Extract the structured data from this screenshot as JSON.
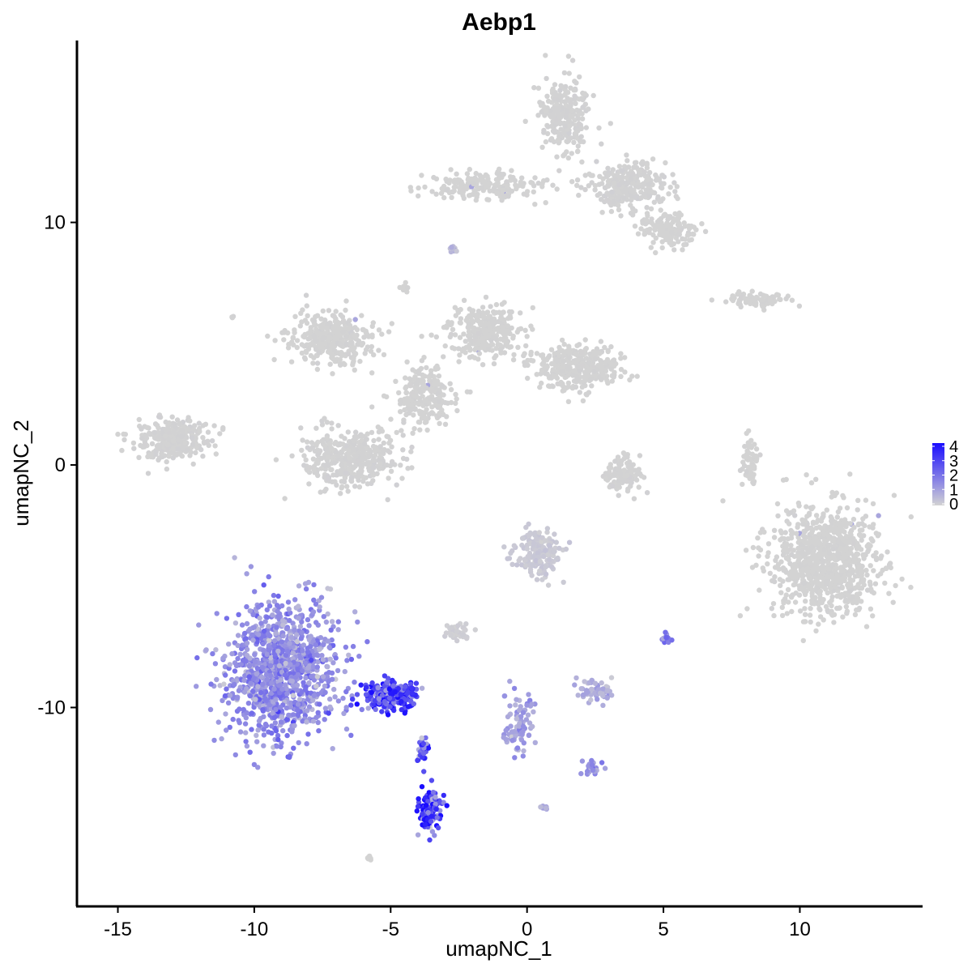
{
  "chart_data": {
    "type": "scatter",
    "title": "Aebp1",
    "xlabel": "umapNC_1",
    "ylabel": "umapNC_2",
    "xlim": [
      -16.5,
      14.5
    ],
    "ylim": [
      -18.2,
      17.5
    ],
    "x_ticks": [
      -15,
      -10,
      -5,
      0,
      5,
      10
    ],
    "x_tick_labels": [
      "-15",
      "-10",
      "-5",
      "0",
      "5",
      "10"
    ],
    "y_ticks": [
      -10,
      0,
      10
    ],
    "y_tick_labels": [
      "-10",
      "0",
      "10"
    ],
    "grid": false,
    "colorbar": {
      "min": 0,
      "max": 4,
      "ticks": [
        0,
        1,
        2,
        3,
        4
      ],
      "tick_labels": [
        "0",
        "1",
        "2",
        "3",
        "4"
      ],
      "low_color": "#D3D3D3",
      "high_color": "#1A0DFF",
      "placement": "right"
    },
    "clusters": [
      {
        "center": [
          -9.0,
          -8.5
        ],
        "spread": [
          1.9,
          2.6
        ],
        "n": 1100,
        "expression": 1.4
      },
      {
        "center": [
          -5.0,
          -9.5
        ],
        "spread": [
          0.9,
          0.5
        ],
        "n": 260,
        "expression": 2.8
      },
      {
        "center": [
          -3.6,
          -14.3
        ],
        "spread": [
          0.35,
          0.75
        ],
        "n": 140,
        "expression": 3.0
      },
      {
        "center": [
          -3.8,
          -11.8
        ],
        "spread": [
          0.2,
          0.6
        ],
        "n": 30,
        "expression": 2.4
      },
      {
        "center": [
          -0.3,
          -10.8
        ],
        "spread": [
          0.5,
          1.0
        ],
        "n": 90,
        "expression": 1.0
      },
      {
        "center": [
          2.4,
          -12.4
        ],
        "spread": [
          0.3,
          0.3
        ],
        "n": 25,
        "expression": 1.2
      },
      {
        "center": [
          5.1,
          -7.2
        ],
        "spread": [
          0.15,
          0.2
        ],
        "n": 20,
        "expression": 1.5
      },
      {
        "center": [
          2.5,
          -9.3
        ],
        "spread": [
          0.55,
          0.45
        ],
        "n": 60,
        "expression": 0.8
      },
      {
        "center": [
          0.4,
          -3.6
        ],
        "spread": [
          0.75,
          0.85
        ],
        "n": 180,
        "expression": 0.2
      },
      {
        "center": [
          -2.5,
          -6.9
        ],
        "spread": [
          0.45,
          0.3
        ],
        "n": 40,
        "expression": 0.1
      },
      {
        "center": [
          11.0,
          -3.9
        ],
        "spread": [
          1.8,
          2.0
        ],
        "n": 900,
        "expression": 0.0
      },
      {
        "center": [
          3.5,
          -0.4
        ],
        "spread": [
          0.6,
          0.7
        ],
        "n": 120,
        "expression": 0.02
      },
      {
        "center": [
          8.2,
          0.0
        ],
        "spread": [
          0.3,
          1.0
        ],
        "n": 60,
        "expression": 0.0
      },
      {
        "center": [
          8.4,
          6.8
        ],
        "spread": [
          1.0,
          0.25
        ],
        "n": 90,
        "expression": 0.0
      },
      {
        "center": [
          -13.0,
          1.0
        ],
        "spread": [
          1.2,
          0.8
        ],
        "n": 300,
        "expression": 0.02
      },
      {
        "center": [
          -6.5,
          0.3
        ],
        "spread": [
          1.5,
          1.1
        ],
        "n": 400,
        "expression": 0.02
      },
      {
        "center": [
          -7.2,
          5.2
        ],
        "spread": [
          1.4,
          0.9
        ],
        "n": 350,
        "expression": 0.0
      },
      {
        "center": [
          -1.5,
          5.5
        ],
        "spread": [
          1.3,
          0.9
        ],
        "n": 300,
        "expression": 0.0
      },
      {
        "center": [
          1.8,
          4.0
        ],
        "spread": [
          1.4,
          0.8
        ],
        "n": 350,
        "expression": 0.0
      },
      {
        "center": [
          -3.7,
          2.8
        ],
        "spread": [
          0.9,
          1.1
        ],
        "n": 220,
        "expression": 0.0
      },
      {
        "center": [
          1.4,
          14.5
        ],
        "spread": [
          0.8,
          1.4
        ],
        "n": 250,
        "expression": 0.02
      },
      {
        "center": [
          3.7,
          11.5
        ],
        "spread": [
          1.3,
          0.9
        ],
        "n": 300,
        "expression": 0.02
      },
      {
        "center": [
          5.2,
          9.7
        ],
        "spread": [
          0.9,
          0.6
        ],
        "n": 150,
        "expression": 0.0
      },
      {
        "center": [
          -1.5,
          11.5
        ],
        "spread": [
          1.7,
          0.5
        ],
        "n": 200,
        "expression": 0.0
      },
      {
        "center": [
          -2.7,
          8.9
        ],
        "spread": [
          0.12,
          0.15
        ],
        "n": 15,
        "expression": 0.5
      },
      {
        "center": [
          -4.5,
          7.3
        ],
        "spread": [
          0.12,
          0.12
        ],
        "n": 10,
        "expression": 0.0
      },
      {
        "center": [
          -10.8,
          6.1
        ],
        "spread": [
          0.05,
          0.05
        ],
        "n": 3,
        "expression": 0.0
      },
      {
        "center": [
          -5.8,
          -16.2
        ],
        "spread": [
          0.1,
          0.1
        ],
        "n": 8,
        "expression": 0.0
      },
      {
        "center": [
          0.6,
          -14.1
        ],
        "spread": [
          0.1,
          0.1
        ],
        "n": 8,
        "expression": 0.9
      }
    ]
  }
}
